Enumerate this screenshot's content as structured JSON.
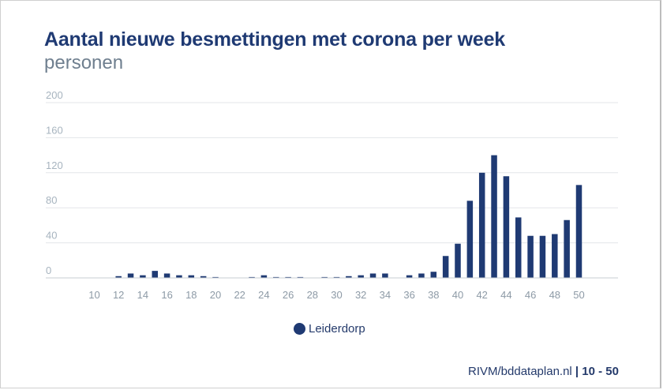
{
  "chart_data": {
    "type": "bar",
    "title": "Aantal nieuwe besmettingen met corona per week",
    "subtitle": "personen",
    "x_tick_labels": [
      "10",
      "12",
      "14",
      "16",
      "18",
      "20",
      "22",
      "24",
      "26",
      "28",
      "30",
      "32",
      "34",
      "36",
      "38",
      "40",
      "42",
      "44",
      "46",
      "48",
      "50"
    ],
    "categories": [
      10,
      11,
      12,
      13,
      14,
      15,
      16,
      17,
      18,
      19,
      20,
      21,
      22,
      23,
      24,
      25,
      26,
      27,
      28,
      29,
      30,
      31,
      32,
      33,
      34,
      35,
      36,
      37,
      38,
      39,
      40,
      41,
      42,
      43,
      44,
      45,
      46,
      47,
      48,
      49,
      50
    ],
    "series": [
      {
        "name": "Leiderdorp",
        "color": "#1f3a73",
        "values": [
          0,
          0,
          2,
          5,
          3,
          8,
          5,
          3,
          3,
          2,
          1,
          0,
          0,
          1,
          3,
          1,
          1,
          1,
          0,
          1,
          1,
          2,
          3,
          5,
          5,
          0,
          3,
          5,
          7,
          25,
          39,
          88,
          120,
          140,
          116,
          69,
          48,
          48,
          50,
          66,
          106
        ]
      }
    ],
    "ylim": [
      0,
      200
    ],
    "y_ticks": [
      0,
      40,
      80,
      120,
      160,
      200
    ],
    "grid": true,
    "legend_position": "bottom-center"
  },
  "legend_label": "Leiderdorp",
  "source": {
    "text": "RIVM/bddataplan.nl",
    "separator": "|",
    "range": "10 - 50"
  }
}
